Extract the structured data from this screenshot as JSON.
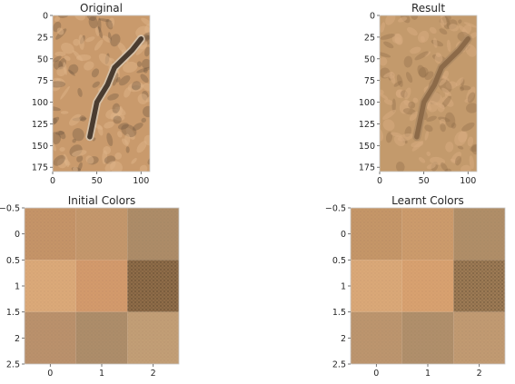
{
  "chart_data": [
    {
      "type": "image",
      "title": "Original",
      "xlabel": "",
      "ylabel": "",
      "image_size": {
        "width": 110,
        "height": 180
      },
      "xlim": [
        0,
        110
      ],
      "ylim": [
        180,
        0
      ],
      "x_ticks": [
        0,
        50,
        100
      ],
      "y_ticks": [
        0,
        25,
        50,
        75,
        100,
        125,
        150,
        175
      ],
      "palette": {
        "base": "#c99a6c",
        "light": "#dcb387",
        "dark": "#6e5540",
        "river": "#4a3c30",
        "bank": "#d8cbb8"
      },
      "river_path": [
        [
          100,
          27
        ],
        [
          90,
          40
        ],
        [
          70,
          60
        ],
        [
          62,
          80
        ],
        [
          50,
          100
        ],
        [
          46,
          120
        ],
        [
          42,
          140
        ]
      ]
    },
    {
      "type": "image",
      "title": "Result",
      "xlabel": "",
      "ylabel": "",
      "image_size": {
        "width": 110,
        "height": 180
      },
      "xlim": [
        0,
        110
      ],
      "ylim": [
        180,
        0
      ],
      "x_ticks": [
        0,
        50,
        100
      ],
      "y_ticks": [
        0,
        25,
        50,
        75,
        100,
        125,
        150,
        175
      ],
      "palette": {
        "base": "#c39a6c",
        "light": "#d7ac80",
        "dark": "#8c6a48",
        "river": "#8c6a48",
        "bank": "#ad8a64"
      },
      "river_path": [
        [
          100,
          27
        ],
        [
          90,
          40
        ],
        [
          70,
          60
        ],
        [
          62,
          80
        ],
        [
          50,
          100
        ],
        [
          46,
          120
        ],
        [
          42,
          140
        ]
      ]
    },
    {
      "type": "heatmap",
      "title": "Initial Colors",
      "xlabel": "",
      "ylabel": "",
      "x_ticks": [
        0,
        1,
        2
      ],
      "y_ticks": [
        -0.5,
        0.0,
        0.5,
        1.0,
        1.5,
        2.0,
        2.5
      ],
      "xlim": [
        -0.5,
        2.5
      ],
      "ylim": [
        2.5,
        -0.5
      ],
      "cells": [
        [
          "#c59468",
          "#c4976c",
          "#ad8c68"
        ],
        [
          "#dba979",
          "#d39a6c",
          "#8e6c48"
        ],
        [
          "#ba916c",
          "#ad8d6a",
          "#c29e76"
        ]
      ]
    },
    {
      "type": "heatmap",
      "title": "Learnt Colors",
      "xlabel": "",
      "ylabel": "",
      "x_ticks": [
        0,
        1,
        2
      ],
      "y_ticks": [
        -0.5,
        0.0,
        0.5,
        1.0,
        1.5,
        2.0,
        2.5
      ],
      "xlim": [
        -0.5,
        2.5
      ],
      "ylim": [
        2.5,
        -0.5
      ],
      "cells": [
        [
          "#c59668",
          "#cc9b6c",
          "#b08e68"
        ],
        [
          "#daa878",
          "#d8a170",
          "#9c7a54"
        ],
        [
          "#bc956e",
          "#b08f6b",
          "#c19a72"
        ]
      ]
    }
  ]
}
